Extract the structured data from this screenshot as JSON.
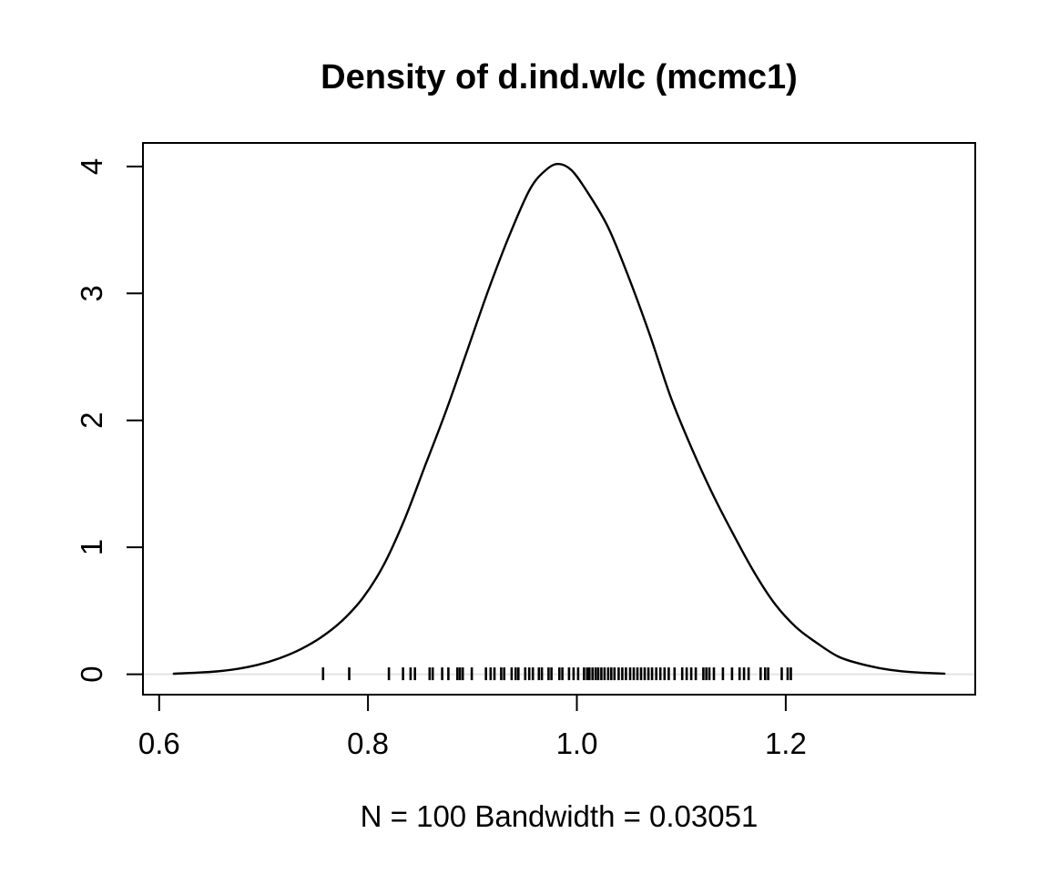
{
  "window": {
    "background_color": "#ffffff",
    "foreground_color": "#000000"
  },
  "chart_data": {
    "type": "line",
    "subtype": "kernel-density",
    "title": "Density of d.ind.wlc (mcmc1)",
    "xlabel": "N = 100   Bandwidth = 0.03051",
    "ylabel": "",
    "n": 100,
    "bandwidth": 0.03051,
    "grid": false,
    "legend_position": "none",
    "line_color": "#000000",
    "zero_line_color": "#e3e3e3",
    "x_range_usr": [
      0.5845,
      1.3815
    ],
    "y_range_usr": [
      -0.161,
      4.186
    ],
    "x_ticks": {
      "values": [
        0.6,
        0.8,
        1.0,
        1.2
      ],
      "labels": [
        "0.6",
        "0.8",
        "1.0",
        "1.2"
      ]
    },
    "y_ticks": {
      "values": [
        0,
        1,
        2,
        3,
        4
      ],
      "labels": [
        "0",
        "1",
        "2",
        "3",
        "4"
      ]
    },
    "series": [
      {
        "name": "density of d.ind.wlc",
        "x": [
          0.614,
          0.635,
          0.655,
          0.675,
          0.695,
          0.715,
          0.735,
          0.755,
          0.775,
          0.795,
          0.815,
          0.835,
          0.855,
          0.875,
          0.895,
          0.915,
          0.935,
          0.955,
          0.97,
          0.982,
          0.995,
          1.01,
          1.03,
          1.05,
          1.07,
          1.09,
          1.11,
          1.13,
          1.15,
          1.17,
          1.19,
          1.21,
          1.23,
          1.25,
          1.27,
          1.29,
          1.31,
          1.33,
          1.352
        ],
        "y": [
          0.004,
          0.012,
          0.022,
          0.042,
          0.075,
          0.125,
          0.195,
          0.29,
          0.42,
          0.6,
          0.86,
          1.22,
          1.65,
          2.08,
          2.55,
          3.02,
          3.45,
          3.82,
          3.97,
          4.02,
          3.97,
          3.8,
          3.52,
          3.12,
          2.67,
          2.18,
          1.78,
          1.42,
          1.1,
          0.8,
          0.55,
          0.37,
          0.245,
          0.14,
          0.085,
          0.048,
          0.024,
          0.012,
          0.005
        ]
      }
    ],
    "rug_values": [
      0.757,
      0.782,
      0.82,
      0.8335,
      0.8408,
      0.845,
      0.859,
      0.862,
      0.871,
      0.877,
      0.8856,
      0.888,
      0.8907,
      0.8994,
      0.913,
      0.9174,
      0.9211,
      0.9275,
      0.9304,
      0.9376,
      0.9414,
      0.944,
      0.9506,
      0.9544,
      0.9579,
      0.9636,
      0.9665,
      0.9729,
      0.9757,
      0.9833,
      0.9861,
      0.9925,
      0.9969,
      1.0012,
      1.0069,
      1.0099,
      1.012,
      1.015,
      1.018,
      1.0205,
      1.0235,
      1.0265,
      1.03,
      1.033,
      1.036,
      1.04,
      1.0435,
      1.047,
      1.051,
      1.0545,
      1.058,
      1.0615,
      1.065,
      1.0685,
      1.072,
      1.076,
      1.08,
      1.084,
      1.088,
      1.0936,
      1.1009,
      1.1052,
      1.1095,
      1.1139,
      1.1211,
      1.124,
      1.1269,
      1.1312,
      1.1399,
      1.1486,
      1.1558,
      1.1601,
      1.1645,
      1.176,
      1.1803,
      1.1832,
      1.1962,
      1.2019,
      1.2049
    ]
  }
}
